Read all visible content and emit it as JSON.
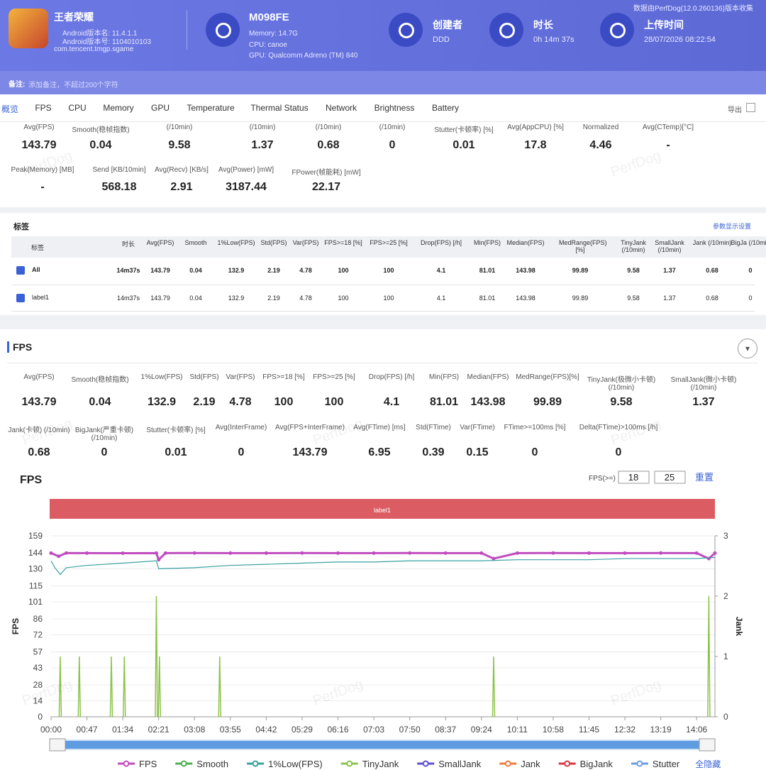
{
  "header": {
    "app_name": "王者荣耀",
    "android_name": "Android版本名: 11.4.1.1",
    "android_code": "Android版本号: 1104010103",
    "package": "com.tencent.tmgp.sgame",
    "device": "M098FE",
    "memory": "Memory: 14.7G",
    "cpu": "CPU: canoe",
    "gpu": "GPU: Qualcomm Adreno (TM) 840",
    "creator_label": "创建者",
    "creator": "DDD",
    "duration_label": "时长",
    "duration": "0h 14m 37s",
    "upload_label": "上传时间",
    "upload_time": "28/07/2026 08:22:54",
    "source": "数据由PerfDog(12.0.260136)版本收集"
  },
  "note": {
    "label": "备注:",
    "placeholder": "添加备注，不超过200个字符"
  },
  "tabs": [
    "概览",
    "FPS",
    "CPU",
    "Memory",
    "GPU",
    "Temperature",
    "Thermal Status",
    "Network",
    "Brightness",
    "Battery"
  ],
  "export": "导出",
  "watermark": "PerfDog",
  "summary": {
    "row1": [
      {
        "label": "Avg(FPS)",
        "value": 143.79
      },
      {
        "label": "Smooth(稳帧指数)",
        "value": 0.04
      },
      {
        "label": "(/10min)",
        "value": 9.58
      },
      {
        "label": "(/10min)",
        "value": 1.37
      },
      {
        "label": "(/10min)",
        "value": 0.68
      },
      {
        "label": "(/10min)",
        "value": 0
      },
      {
        "label": "Stutter(卡顿率) [%]",
        "value": 0.01
      },
      {
        "label": "Avg(AppCPU) [%]",
        "value": 17.8
      },
      {
        "label": "Normalized",
        "value": 4.46
      },
      {
        "label": "Avg(CTemp)[°C]",
        "value": "-"
      }
    ],
    "row2": [
      {
        "label": "Peak(Memory) [MB]",
        "value": "-"
      },
      {
        "label": "Send [KB/10min]",
        "value": 568.18
      },
      {
        "label": "Avg(Recv) [KB/s]",
        "value": 2.91
      },
      {
        "label": "Avg(Power) [mW]",
        "value": 3187.44
      },
      {
        "label": "FPower(帧能耗) [mW]",
        "value": 22.17
      }
    ]
  },
  "tags": {
    "title": "标签",
    "settings": "参数显示设置",
    "columns": [
      "标签",
      "时长",
      "Avg(FPS)",
      "Smooth",
      "1%Low(FPS)",
      "Std(FPS)",
      "Var(FPS)",
      "FPS>=18 [%]",
      "FPS>=25 [%]",
      "Drop(FPS) [/h]",
      "Min(FPS)",
      "Median(FPS)",
      "MedRange(FPS)[%]",
      "TinyJank (/10min)",
      "SmallJank (/10min)",
      "Jank (/10min)",
      "BigJa (/10min"
    ],
    "rows": [
      [
        "All",
        "14m37s",
        143.79,
        0.04,
        132.9,
        2.19,
        4.78,
        100,
        100,
        4.1,
        81.01,
        143.98,
        99.89,
        9.58,
        1.37,
        0.68,
        0
      ],
      [
        "label1",
        "14m37s",
        143.79,
        0.04,
        132.9,
        2.19,
        4.78,
        100,
        100,
        4.1,
        81.01,
        143.98,
        99.89,
        9.58,
        1.37,
        0.68,
        0
      ]
    ]
  },
  "fps_section": {
    "title": "FPS",
    "row1": [
      {
        "label": "Avg(FPS)",
        "value": 143.79
      },
      {
        "label": "Smooth(稳帧指数)",
        "value": 0.04
      },
      {
        "label": "1%Low(FPS)",
        "value": 132.9
      },
      {
        "label": "Std(FPS)",
        "value": 2.19
      },
      {
        "label": "Var(FPS)",
        "value": 4.78
      },
      {
        "label": "FPS>=18 [%]",
        "value": 100
      },
      {
        "label": "FPS>=25 [%]",
        "value": 100
      },
      {
        "label": "Drop(FPS) [/h]",
        "value": 4.1
      },
      {
        "label": "Min(FPS)",
        "value": 81.01
      },
      {
        "label": "Median(FPS)",
        "value": 143.98
      },
      {
        "label": "MedRange(FPS)[%]",
        "value": 99.89
      },
      {
        "label": "TinyJank(极微小卡顿) (/10min)",
        "value": 9.58
      },
      {
        "label": "SmallJank(微小卡顿) (/10min)",
        "value": 1.37
      }
    ],
    "row2": [
      {
        "label": "Jank(卡顿) (/10min)",
        "value": 0.68
      },
      {
        "label": "BigJank(严重卡顿) (/10min)",
        "value": 0
      },
      {
        "label": "Stutter(卡顿率) [%]",
        "value": 0.01
      },
      {
        "label": "Avg(InterFrame)",
        "value": 0
      },
      {
        "label": "Avg(FPS+InterFrame)",
        "value": 143.79
      },
      {
        "label": "Avg(FTime) [ms]",
        "value": 6.95
      },
      {
        "label": "Std(FTime)",
        "value": 0.39
      },
      {
        "label": "Var(FTime)",
        "value": 0.15
      },
      {
        "label": "FTime>=100ms [%]",
        "value": 0
      },
      {
        "label": "Delta(FTime)>100ms [/h]",
        "value": 0
      }
    ]
  },
  "chart": {
    "type": "line",
    "title": "FPS",
    "threshold_label": "FPS(>=)",
    "thresholds": [
      18,
      25
    ],
    "reset": "重置",
    "label_band": "label1",
    "ylabel": "FPS",
    "y2label": "Jank",
    "xlim": [
      0,
      870
    ],
    "ylim": [
      0,
      159
    ],
    "yticks": [
      0,
      14,
      28,
      43,
      57,
      72,
      86,
      101,
      115,
      130,
      144,
      159
    ],
    "y2lim": [
      0,
      3
    ],
    "y2ticks": [
      0,
      1,
      2,
      3
    ],
    "xticks": [
      {
        "value": 0,
        "label": "00:00"
      },
      {
        "value": 47,
        "label": "00:47"
      },
      {
        "value": 94,
        "label": "01:34"
      },
      {
        "value": 141,
        "label": "02:21"
      },
      {
        "value": 188,
        "label": "03:08"
      },
      {
        "value": 235,
        "label": "03:55"
      },
      {
        "value": 282,
        "label": "04:42"
      },
      {
        "value": 329,
        "label": "05:29"
      },
      {
        "value": 376,
        "label": "06:16"
      },
      {
        "value": 423,
        "label": "07:03"
      },
      {
        "value": 470,
        "label": "07:50"
      },
      {
        "value": 517,
        "label": "08:37"
      },
      {
        "value": 564,
        "label": "09:24"
      },
      {
        "value": 611,
        "label": "10:11"
      },
      {
        "value": 658,
        "label": "10:58"
      },
      {
        "value": 705,
        "label": "11:45"
      },
      {
        "value": 752,
        "label": "12:32"
      },
      {
        "value": 799,
        "label": "13:19"
      },
      {
        "value": 846,
        "label": "14:06"
      }
    ],
    "series": [
      {
        "name": "FPS",
        "color": "#c04cbf",
        "x": [
          0,
          10,
          20,
          47,
          94,
          138,
          141,
          150,
          188,
          235,
          282,
          329,
          376,
          423,
          470,
          517,
          564,
          580,
          611,
          658,
          705,
          752,
          799,
          846,
          862,
          870
        ],
        "values": [
          143.8,
          141,
          143.9,
          143.8,
          143.7,
          143.8,
          138,
          143.8,
          143.9,
          143.8,
          143.8,
          143.9,
          143.8,
          143.8,
          143.9,
          143.8,
          143.8,
          139,
          143.8,
          143.9,
          143.8,
          143.8,
          143.9,
          143.8,
          139,
          143.8
        ]
      },
      {
        "name": "Smooth",
        "color": "#4caf50"
      },
      {
        "name": "1%Low(FPS)",
        "color": "#3aa0a0",
        "x": [
          0,
          5,
          12,
          20,
          47,
          94,
          138,
          141,
          188,
          235,
          282,
          329,
          376,
          423,
          470,
          517,
          564,
          611,
          658,
          705,
          752,
          799,
          846,
          870
        ],
        "values": [
          137,
          131,
          125,
          131,
          133,
          135,
          137,
          130,
          131,
          133,
          134,
          135,
          136,
          136,
          137,
          137,
          137,
          138,
          138,
          138,
          139,
          139,
          139,
          140
        ]
      },
      {
        "name": "TinyJank",
        "color": "#8bc34a",
        "axis": "y2",
        "x": [
          12,
          37,
          79,
          96,
          138,
          142,
          221,
          580,
          862
        ],
        "values": [
          1,
          1,
          1,
          1,
          2,
          1,
          1,
          1,
          2
        ]
      },
      {
        "name": "SmallJank",
        "color": "#5a4fcf"
      },
      {
        "name": "Jank",
        "color": "#f07b3f"
      },
      {
        "name": "BigJank",
        "color": "#d9363e"
      },
      {
        "name": "Stutter",
        "color": "#6a9be0"
      }
    ],
    "hide_all": "全隐藏"
  }
}
